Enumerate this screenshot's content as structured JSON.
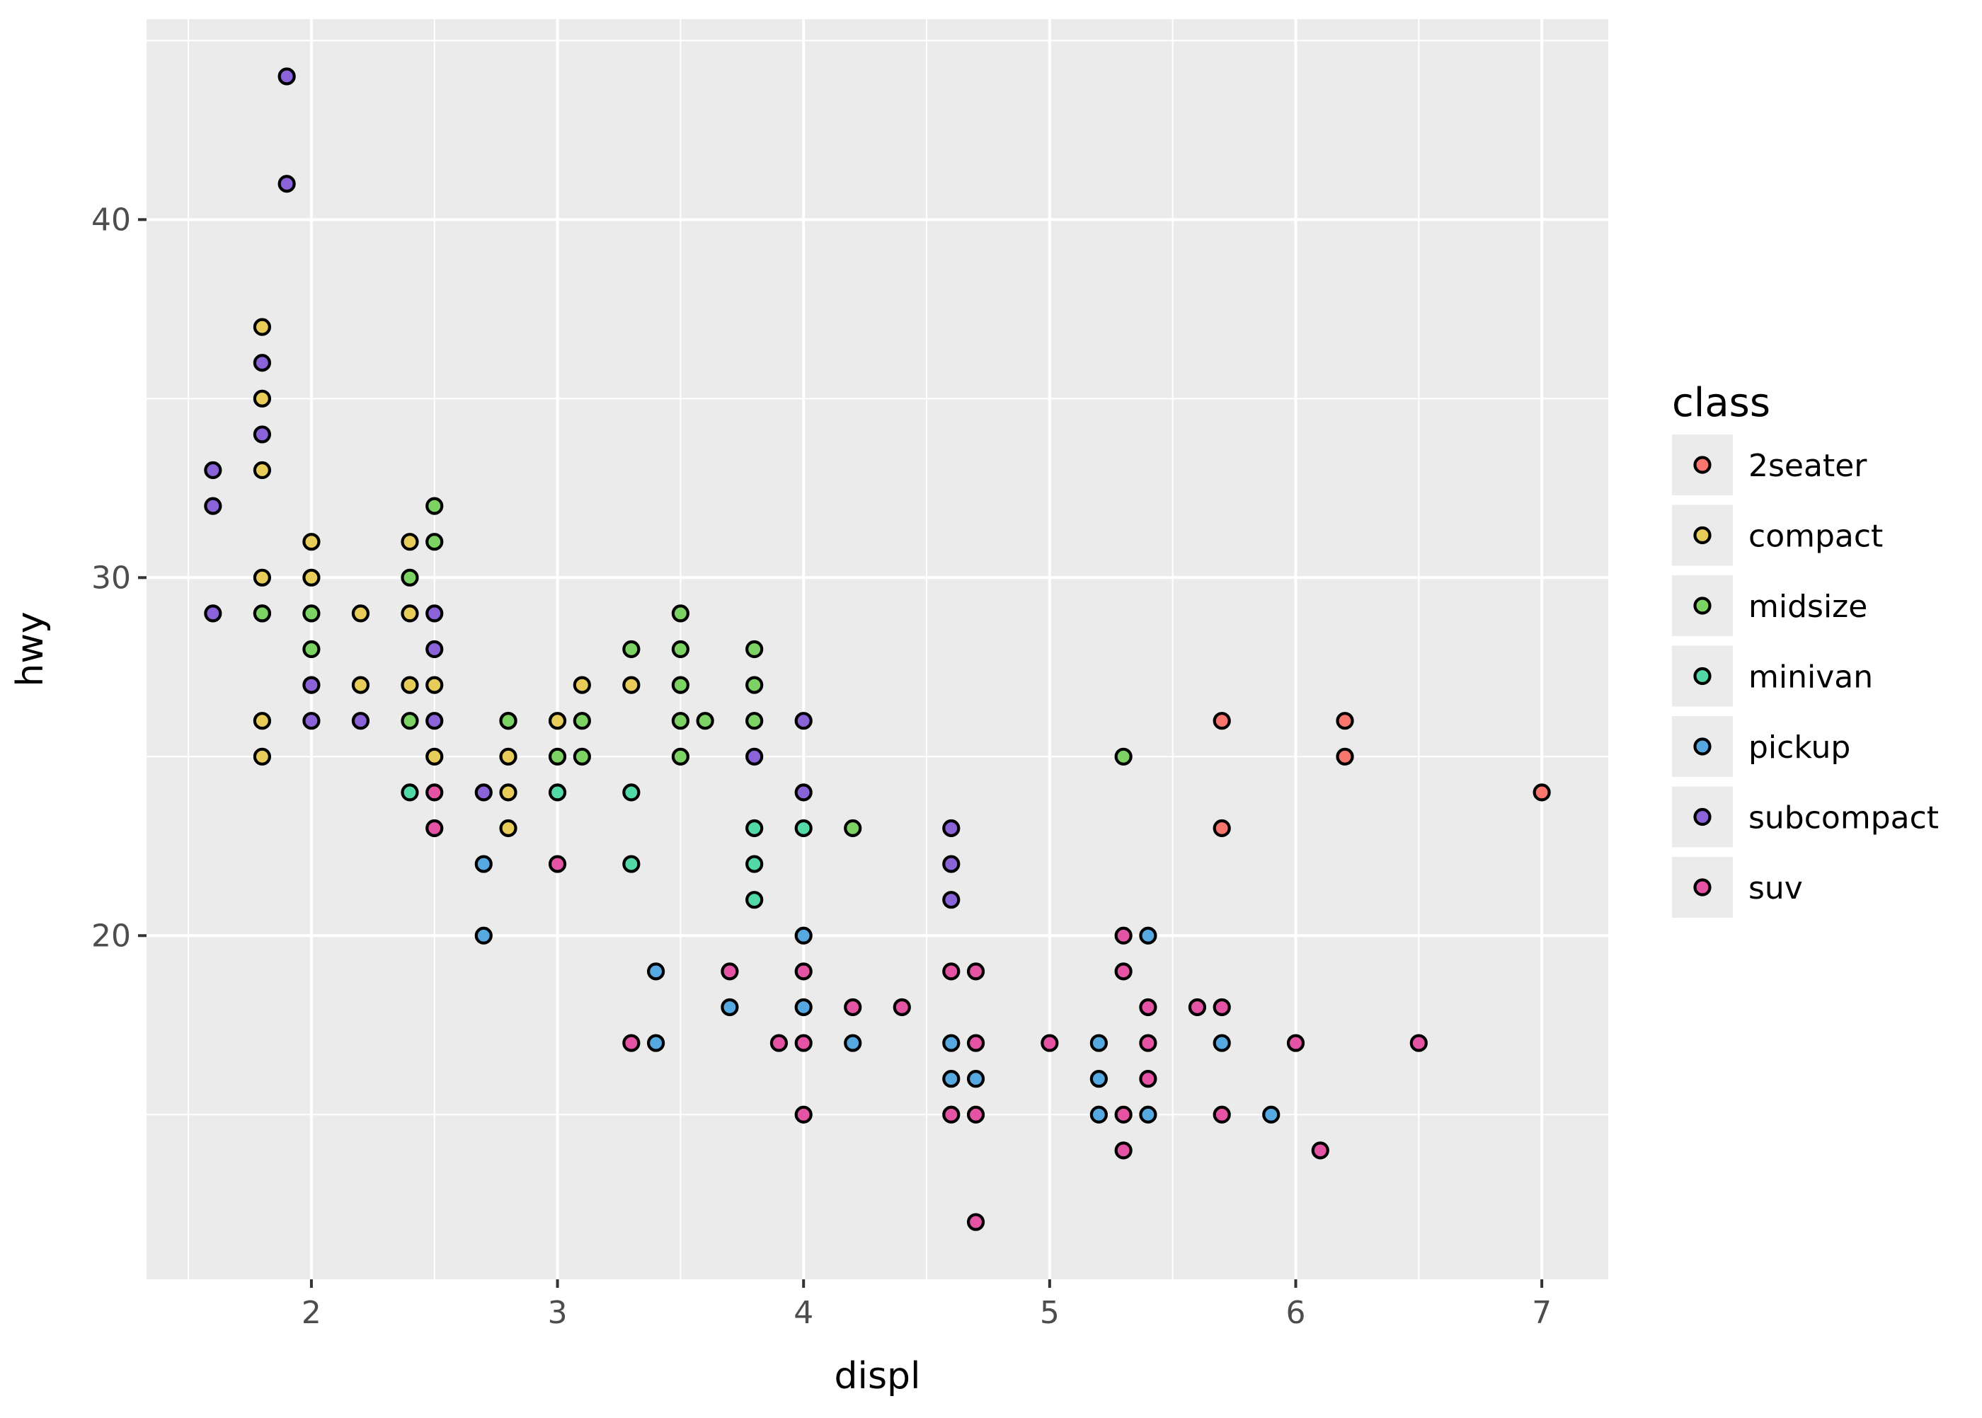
{
  "chart_data": {
    "type": "scatter",
    "title": "",
    "xlabel": "displ",
    "ylabel": "hwy",
    "xlim": [
      1.33,
      7.27
    ],
    "ylim": [
      10.4,
      45.6
    ],
    "x_ticks": [
      2,
      3,
      4,
      5,
      6,
      7
    ],
    "y_ticks": [
      20,
      30,
      40
    ],
    "grid": true,
    "legend": {
      "title": "class",
      "placement": "right"
    },
    "series": [
      {
        "name": "2seater",
        "color": "#F8766D",
        "points": [
          [
            5.7,
            26
          ],
          [
            5.7,
            23
          ],
          [
            6.2,
            26
          ],
          [
            6.2,
            25
          ],
          [
            7.0,
            24
          ]
        ]
      },
      {
        "name": "compact",
        "color": "#E7CC5A",
        "points": [
          [
            1.8,
            37
          ],
          [
            1.8,
            35
          ],
          [
            1.8,
            33
          ],
          [
            1.8,
            30
          ],
          [
            1.8,
            29
          ],
          [
            1.8,
            26
          ],
          [
            1.8,
            25
          ],
          [
            2.0,
            31
          ],
          [
            2.0,
            30
          ],
          [
            2.2,
            29
          ],
          [
            2.2,
            27
          ],
          [
            2.4,
            31
          ],
          [
            2.4,
            29
          ],
          [
            2.4,
            27
          ],
          [
            2.5,
            27
          ],
          [
            2.5,
            25
          ],
          [
            2.8,
            26
          ],
          [
            2.8,
            25
          ],
          [
            2.8,
            24
          ],
          [
            2.8,
            23
          ],
          [
            3.0,
            26
          ],
          [
            3.1,
            27
          ],
          [
            3.3,
            27
          ]
        ]
      },
      {
        "name": "midsize",
        "color": "#7CD364",
        "points": [
          [
            1.8,
            29
          ],
          [
            2.0,
            29
          ],
          [
            2.0,
            28
          ],
          [
            2.4,
            30
          ],
          [
            2.4,
            26
          ],
          [
            2.5,
            32
          ],
          [
            2.5,
            31
          ],
          [
            2.8,
            26
          ],
          [
            3.0,
            25
          ],
          [
            3.1,
            26
          ],
          [
            3.1,
            25
          ],
          [
            3.3,
            28
          ],
          [
            3.5,
            29
          ],
          [
            3.5,
            28
          ],
          [
            3.5,
            27
          ],
          [
            3.5,
            26
          ],
          [
            3.5,
            25
          ],
          [
            3.6,
            26
          ],
          [
            3.8,
            28
          ],
          [
            3.8,
            27
          ],
          [
            3.8,
            26
          ],
          [
            4.2,
            23
          ],
          [
            5.3,
            25
          ]
        ]
      },
      {
        "name": "minivan",
        "color": "#52D9A6",
        "points": [
          [
            2.4,
            24
          ],
          [
            3.0,
            24
          ],
          [
            3.3,
            24
          ],
          [
            3.3,
            22
          ],
          [
            3.8,
            23
          ],
          [
            3.8,
            22
          ],
          [
            3.8,
            21
          ],
          [
            4.0,
            23
          ]
        ]
      },
      {
        "name": "pickup",
        "color": "#56A8E0",
        "points": [
          [
            2.7,
            22
          ],
          [
            2.7,
            20
          ],
          [
            3.4,
            19
          ],
          [
            3.4,
            17
          ],
          [
            3.7,
            18
          ],
          [
            4.0,
            20
          ],
          [
            4.0,
            18
          ],
          [
            4.2,
            17
          ],
          [
            4.6,
            17
          ],
          [
            4.6,
            16
          ],
          [
            4.7,
            16
          ],
          [
            5.2,
            17
          ],
          [
            5.2,
            16
          ],
          [
            5.2,
            15
          ],
          [
            5.4,
            20
          ],
          [
            5.4,
            15
          ],
          [
            5.7,
            17
          ],
          [
            5.9,
            15
          ]
        ]
      },
      {
        "name": "subcompact",
        "color": "#8A63D8",
        "points": [
          [
            1.6,
            33
          ],
          [
            1.6,
            32
          ],
          [
            1.6,
            29
          ],
          [
            1.8,
            36
          ],
          [
            1.8,
            34
          ],
          [
            1.9,
            44
          ],
          [
            1.9,
            41
          ],
          [
            2.0,
            27
          ],
          [
            2.0,
            26
          ],
          [
            2.2,
            26
          ],
          [
            2.5,
            29
          ],
          [
            2.5,
            28
          ],
          [
            2.5,
            26
          ],
          [
            2.7,
            24
          ],
          [
            3.8,
            25
          ],
          [
            4.0,
            26
          ],
          [
            4.0,
            24
          ],
          [
            4.6,
            23
          ],
          [
            4.6,
            22
          ],
          [
            4.6,
            21
          ]
        ]
      },
      {
        "name": "suv",
        "color": "#E553A5",
        "points": [
          [
            2.5,
            24
          ],
          [
            2.5,
            23
          ],
          [
            3.0,
            22
          ],
          [
            3.3,
            17
          ],
          [
            3.7,
            19
          ],
          [
            3.9,
            17
          ],
          [
            4.0,
            19
          ],
          [
            4.0,
            17
          ],
          [
            4.0,
            15
          ],
          [
            4.2,
            18
          ],
          [
            4.4,
            18
          ],
          [
            4.6,
            19
          ],
          [
            4.6,
            15
          ],
          [
            4.7,
            19
          ],
          [
            4.7,
            17
          ],
          [
            4.7,
            15
          ],
          [
            4.7,
            12
          ],
          [
            5.0,
            17
          ],
          [
            5.3,
            20
          ],
          [
            5.3,
            19
          ],
          [
            5.3,
            15
          ],
          [
            5.3,
            14
          ],
          [
            5.4,
            18
          ],
          [
            5.4,
            17
          ],
          [
            5.4,
            16
          ],
          [
            5.6,
            18
          ],
          [
            5.7,
            18
          ],
          [
            5.7,
            15
          ],
          [
            6.0,
            17
          ],
          [
            6.1,
            14
          ],
          [
            6.5,
            17
          ]
        ]
      }
    ]
  }
}
